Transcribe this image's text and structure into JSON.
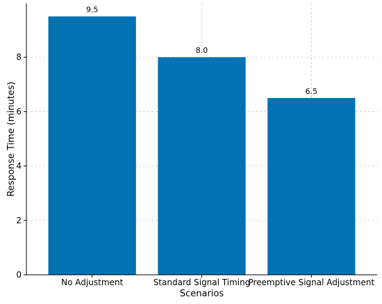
{
  "chart_data": {
    "type": "bar",
    "title": "",
    "xlabel": "Scenarios",
    "ylabel": "Response Time (minutes)",
    "categories": [
      "No Adjustment",
      "Standard Signal Timing",
      "Preemptive Signal Adjustment"
    ],
    "values": [
      9.5,
      8.0,
      6.5
    ],
    "value_labels": [
      "9.5",
      "8.0",
      "6.5"
    ],
    "yticks": [
      0,
      2,
      4,
      6,
      8
    ],
    "ylim": [
      0,
      9.975
    ],
    "grid": true,
    "legend": "none",
    "bar_color": "#0072b2"
  }
}
